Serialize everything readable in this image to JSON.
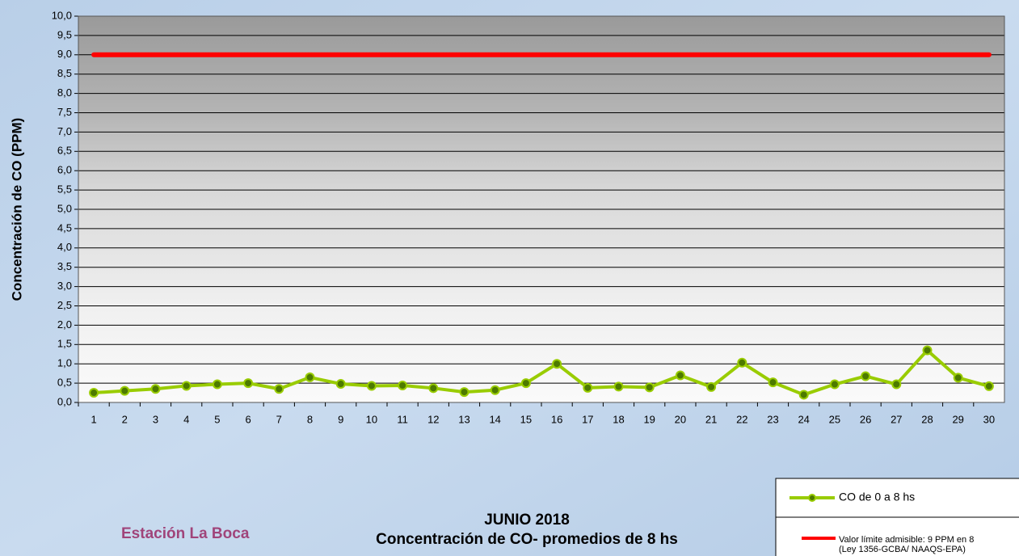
{
  "chart_data": {
    "type": "line",
    "title": "JUNIO 2018",
    "subtitle": "Concentración de CO- promedios de 8 hs",
    "station": "Estación La Boca",
    "ylabel": "Concentración de CO (PPM)",
    "categories": [
      "1",
      "2",
      "3",
      "4",
      "5",
      "6",
      "7",
      "8",
      "9",
      "10",
      "11",
      "12",
      "13",
      "14",
      "15",
      "16",
      "17",
      "18",
      "19",
      "20",
      "21",
      "22",
      "23",
      "24",
      "25",
      "26",
      "27",
      "28",
      "29",
      "30"
    ],
    "series": [
      {
        "name": "CO de 0 a 8 hs",
        "color": "#99cc00",
        "values": [
          0.25,
          0.3,
          0.35,
          0.43,
          0.47,
          0.5,
          0.35,
          0.65,
          0.48,
          0.43,
          0.44,
          0.37,
          0.27,
          0.32,
          0.5,
          1.0,
          0.38,
          0.41,
          0.39,
          0.7,
          0.4,
          1.03,
          0.52,
          0.2,
          0.47,
          0.68,
          0.47,
          1.35,
          0.64,
          0.42
        ]
      },
      {
        "name": "Valor límite admisible: 9 PPM en 8",
        "note": "(Ley 1356-GCBA/ NAAQS-EPA)",
        "color": "#ff0000",
        "values": [
          9,
          9,
          9,
          9,
          9,
          9,
          9,
          9,
          9,
          9,
          9,
          9,
          9,
          9,
          9,
          9,
          9,
          9,
          9,
          9,
          9,
          9,
          9,
          9,
          9,
          9,
          9,
          9,
          9,
          9
        ]
      }
    ],
    "ylim": [
      0,
      10
    ],
    "yticks": [
      {
        "value": 0,
        "label": "0,0"
      },
      {
        "value": 0.5,
        "label": "0,5"
      },
      {
        "value": 1,
        "label": "1,0"
      },
      {
        "value": 1.5,
        "label": "1,5"
      },
      {
        "value": 2,
        "label": "2,0"
      },
      {
        "value": 2.5,
        "label": "2,5"
      },
      {
        "value": 3,
        "label": "3,0"
      },
      {
        "value": 3.5,
        "label": "3,5"
      },
      {
        "value": 4,
        "label": "4,0"
      },
      {
        "value": 4.5,
        "label": "4,5"
      },
      {
        "value": 5,
        "label": "5,0"
      },
      {
        "value": 5.5,
        "label": "5,5"
      },
      {
        "value": 6,
        "label": "6,0"
      },
      {
        "value": 6.5,
        "label": "6,5"
      },
      {
        "value": 7,
        "label": "7,0"
      },
      {
        "value": 7.5,
        "label": "7,5"
      },
      {
        "value": 8,
        "label": "8,0"
      },
      {
        "value": 8.5,
        "label": "8,5"
      },
      {
        "value": 9,
        "label": "9,0"
      },
      {
        "value": 9.5,
        "label": "9,5"
      },
      {
        "value": 10,
        "label": "10,0"
      }
    ],
    "grid": true
  }
}
